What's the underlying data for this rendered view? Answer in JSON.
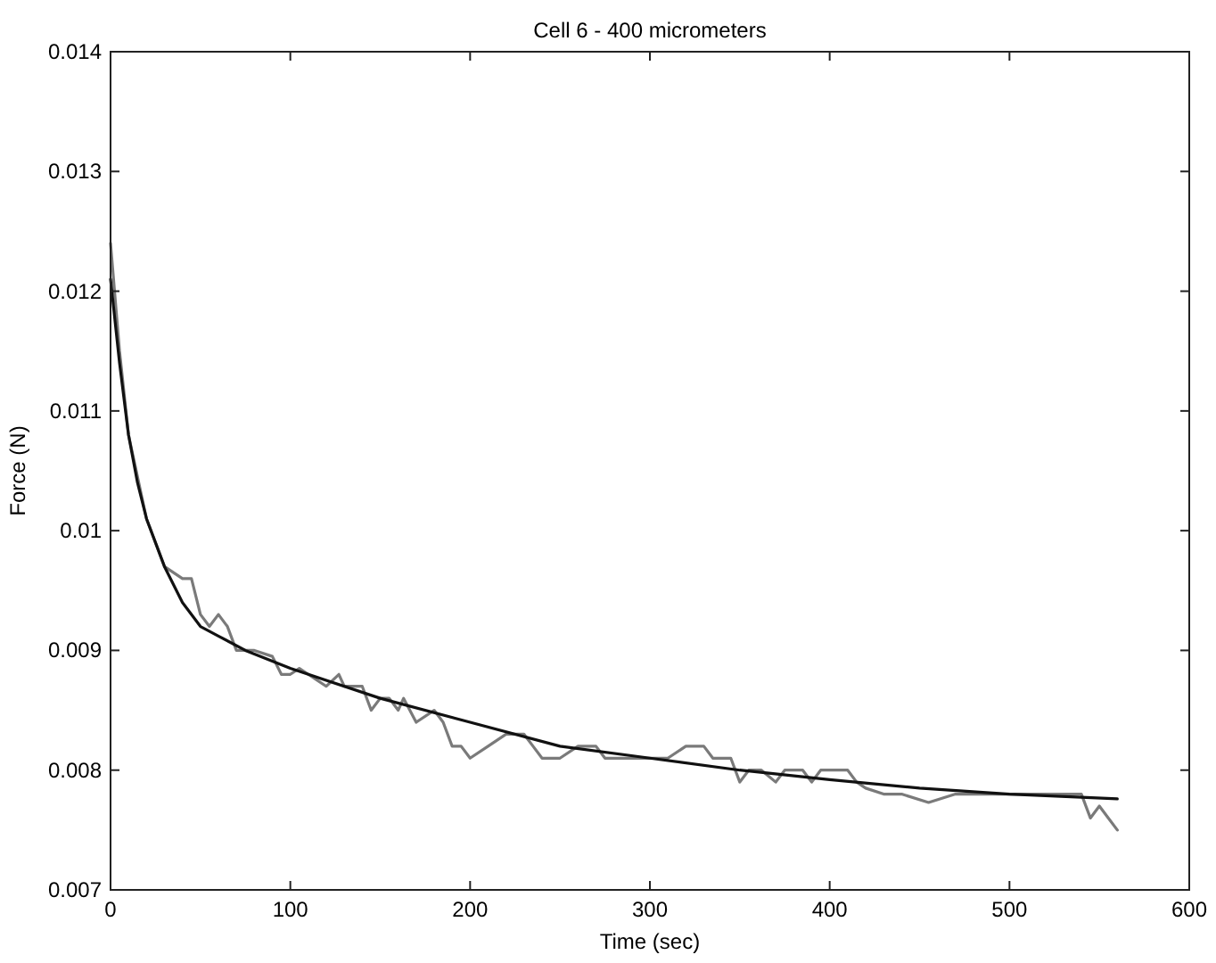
{
  "chart_data": {
    "type": "line",
    "title": "Cell 6 - 400 micrometers",
    "xlabel": "Time (sec)",
    "ylabel": "Force (N)",
    "xlim": [
      0,
      600
    ],
    "xticks": [
      0,
      100,
      200,
      300,
      400,
      500,
      600
    ],
    "ylim": [
      0.007,
      0.014
    ],
    "yticks": [
      0.007,
      0.008,
      0.009,
      {
        "value": 0.01,
        "label": "0.01"
      },
      0.011,
      0.012,
      0.013,
      0.014
    ],
    "grid": false,
    "marker": "none",
    "series": [
      {
        "color": "#7a7a7a",
        "x": [
          0,
          5,
          10,
          20,
          30,
          40,
          45,
          50,
          55,
          60,
          65,
          70,
          80,
          90,
          95,
          100,
          105,
          110,
          120,
          127,
          130,
          140,
          145,
          150,
          155,
          160,
          163,
          170,
          180,
          185,
          190,
          195,
          200,
          210,
          220,
          230,
          235,
          240,
          250,
          260,
          270,
          275,
          285,
          300,
          310,
          320,
          330,
          335,
          345,
          350,
          355,
          362,
          370,
          375,
          385,
          390,
          395,
          405,
          410,
          415,
          420,
          430,
          440,
          455,
          470,
          500,
          530,
          540,
          545,
          550,
          555,
          560
        ],
        "values": [
          0.0124,
          0.0115,
          0.0108,
          0.0101,
          0.0097,
          0.0096,
          0.0096,
          0.0093,
          0.0092,
          0.0093,
          0.0092,
          0.009,
          0.009,
          0.00895,
          0.0088,
          0.0088,
          0.00885,
          0.0088,
          0.0087,
          0.0088,
          0.0087,
          0.0087,
          0.0085,
          0.0086,
          0.0086,
          0.0085,
          0.0086,
          0.0084,
          0.0085,
          0.0084,
          0.0082,
          0.0082,
          0.0081,
          0.0082,
          0.0083,
          0.0083,
          0.0082,
          0.0081,
          0.0081,
          0.0082,
          0.0082,
          0.0081,
          0.0081,
          0.0081,
          0.0081,
          0.0082,
          0.0082,
          0.0081,
          0.0081,
          0.0079,
          0.008,
          0.008,
          0.0079,
          0.008,
          0.008,
          0.0079,
          0.008,
          0.008,
          0.008,
          0.0079,
          0.00785,
          0.0078,
          0.0078,
          0.00773,
          0.0078,
          0.0078,
          0.0078,
          0.0078,
          0.0076,
          0.0077,
          0.0076,
          0.0075
        ]
      },
      {
        "color": "#111111",
        "x": [
          0,
          5,
          10,
          15,
          20,
          30,
          40,
          50,
          60,
          75,
          100,
          150,
          200,
          250,
          300,
          350,
          400,
          450,
          500,
          560
        ],
        "values": [
          0.0121,
          0.0114,
          0.0108,
          0.0104,
          0.0101,
          0.0097,
          0.0094,
          0.0092,
          0.00912,
          0.009,
          0.00885,
          0.0086,
          0.0084,
          0.0082,
          0.0081,
          0.008,
          0.00792,
          0.00785,
          0.0078,
          0.00776
        ]
      }
    ]
  }
}
